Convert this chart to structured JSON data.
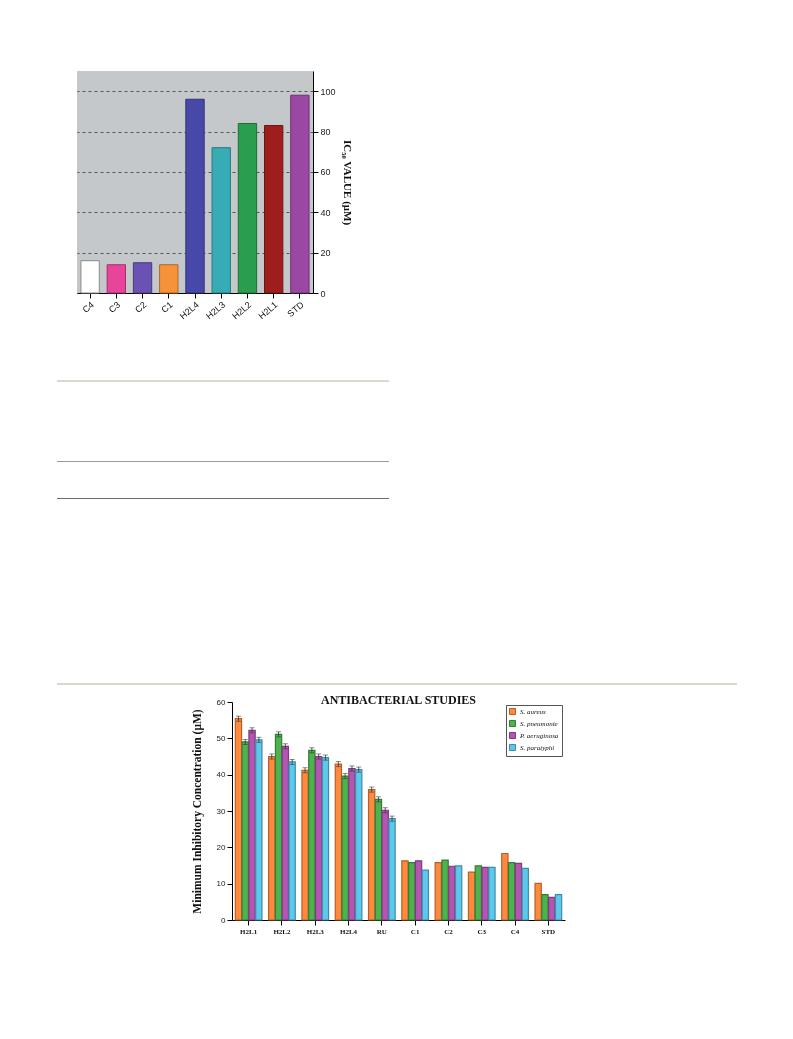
{
  "chart_data": [
    {
      "type": "bar",
      "ylabel": "IC₅₀ VALUE (μM)",
      "categories": [
        "C4",
        "C3",
        "C2",
        "C1",
        "H2L4",
        "H2L3",
        "H2L2",
        "H2L1",
        "STD"
      ],
      "values": [
        16,
        14,
        15,
        14,
        96,
        72,
        84,
        83,
        98
      ],
      "colors": [
        "#ffffff",
        "#e8449a",
        "#6a52b4",
        "#f7923a",
        "#4848a8",
        "#38acb4",
        "#2a9e4e",
        "#9e1e1e",
        "#9a48a4"
      ],
      "ylim": [
        0,
        110
      ],
      "yticks": [
        0,
        20,
        40,
        60,
        80,
        100
      ],
      "grid": "y",
      "legend": false
    },
    {
      "type": "bar",
      "title": "ANTIBACTERIAL STUDIES",
      "ylabel": "Minimum Inhibitory Concentration (μM)",
      "categories": [
        "H2L1",
        "H2L2",
        "H2L3",
        "H2L4",
        "RU",
        "C1",
        "C2",
        "C3",
        "C4",
        "STD"
      ],
      "series": [
        {
          "name": "S. aureus",
          "color": "#ff8a3d",
          "values": [
            55.4,
            45.0,
            41.2,
            42.9,
            35.9,
            16.3,
            15.8,
            13.2,
            18.3,
            10.1
          ],
          "errors": [
            0.7,
            0.7,
            0.7,
            0.7,
            0.7,
            null,
            null,
            null,
            null,
            null
          ]
        },
        {
          "name": "S. pneumonie",
          "color": "#4db34d",
          "values": [
            49.0,
            51.1,
            46.7,
            39.6,
            33.2,
            15.8,
            16.5,
            14.9,
            15.8,
            7.0
          ],
          "errors": [
            0.7,
            0.7,
            0.7,
            0.7,
            0.7,
            null,
            null,
            null,
            null,
            null
          ]
        },
        {
          "name": "P. aeruginosa",
          "color": "#b455b4",
          "values": [
            52.2,
            47.8,
            45.0,
            41.7,
            30.2,
            16.3,
            14.8,
            14.5,
            15.6,
            6.2
          ],
          "errors": [
            0.7,
            0.7,
            0.7,
            0.7,
            0.7,
            null,
            null,
            null,
            null,
            null
          ]
        },
        {
          "name": "S. paratyphi",
          "color": "#5cc8ec",
          "values": [
            49.6,
            43.5,
            44.7,
            41.4,
            27.9,
            13.7,
            14.9,
            14.5,
            14.2,
            7.0
          ],
          "errors": [
            0.7,
            0.7,
            0.7,
            0.7,
            0.7,
            null,
            null,
            null,
            null,
            null
          ]
        }
      ],
      "ylim": [
        0,
        60
      ],
      "yticks": [
        0,
        10,
        20,
        30,
        40,
        50,
        60
      ],
      "legend": "top right"
    }
  ]
}
